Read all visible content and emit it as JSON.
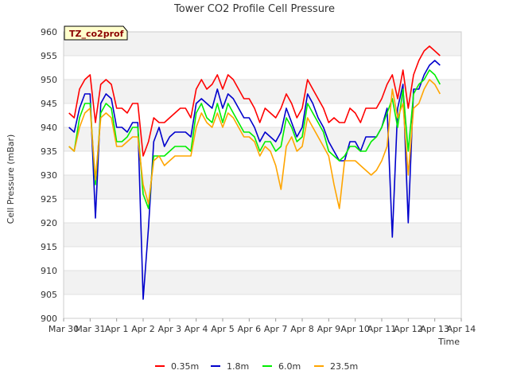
{
  "chart_data": {
    "type": "line",
    "title": "Tower CO2 Profile Cell Pressure",
    "xlabel": "Time",
    "ylabel": "Cell Pressure (mBar)",
    "annotation": "TZ_co2prof",
    "ylim": [
      900,
      960
    ],
    "yticks": [
      900,
      905,
      910,
      915,
      920,
      925,
      930,
      935,
      940,
      945,
      950,
      955,
      960
    ],
    "xlim": [
      0,
      15
    ],
    "xticks": [
      {
        "x": 0,
        "label": "Mar 30"
      },
      {
        "x": 1,
        "label": "Mar 31"
      },
      {
        "x": 2,
        "label": "Apr 1"
      },
      {
        "x": 3,
        "label": "Apr 2"
      },
      {
        "x": 4,
        "label": "Apr 3"
      },
      {
        "x": 5,
        "label": "Apr 4"
      },
      {
        "x": 6,
        "label": "Apr 5"
      },
      {
        "x": 7,
        "label": "Apr 6"
      },
      {
        "x": 8,
        "label": "Apr 7"
      },
      {
        "x": 9,
        "label": "Apr 8"
      },
      {
        "x": 10,
        "label": "Apr 9"
      },
      {
        "x": 11,
        "label": "Apr 10"
      },
      {
        "x": 12,
        "label": "Apr 11"
      },
      {
        "x": 13,
        "label": "Apr 12"
      },
      {
        "x": 14,
        "label": "Apr 13"
      },
      {
        "x": 15,
        "label": "Apr 14"
      }
    ],
    "grid": "horizontal bands",
    "legend": "bottom",
    "series": [
      {
        "name": "0.35m",
        "color": "#ff0000",
        "x": [
          0.2,
          0.4,
          0.6,
          0.8,
          1.0,
          1.2,
          1.4,
          1.6,
          1.8,
          2.0,
          2.2,
          2.4,
          2.6,
          2.8,
          3.0,
          3.2,
          3.4,
          3.6,
          3.8,
          4.0,
          4.2,
          4.4,
          4.6,
          4.8,
          5.0,
          5.2,
          5.4,
          5.6,
          5.8,
          6.0,
          6.2,
          6.4,
          6.6,
          6.8,
          7.0,
          7.2,
          7.4,
          7.6,
          7.8,
          8.0,
          8.2,
          8.4,
          8.6,
          8.8,
          9.0,
          9.2,
          9.4,
          9.6,
          9.8,
          10.0,
          10.2,
          10.4,
          10.6,
          10.8,
          11.0,
          11.2,
          11.4,
          11.6,
          11.8,
          12.0,
          12.2,
          12.4,
          12.6,
          12.8,
          13.0,
          13.2,
          13.4,
          13.6,
          13.8,
          14.0,
          14.2
        ],
        "y": [
          943,
          942,
          948,
          950,
          951,
          941,
          949,
          950,
          949,
          944,
          944,
          943,
          945,
          945,
          934,
          937,
          942,
          941,
          941,
          942,
          943,
          944,
          944,
          942,
          948,
          950,
          948,
          949,
          951,
          948,
          951,
          950,
          948,
          946,
          946,
          944,
          941,
          944,
          943,
          942,
          944,
          947,
          945,
          942,
          944,
          950,
          948,
          946,
          944,
          941,
          942,
          941,
          941,
          944,
          943,
          941,
          944,
          944,
          944,
          946,
          949,
          951,
          946,
          952,
          944,
          951,
          954,
          956,
          957,
          956,
          955
        ]
      },
      {
        "name": "1.8m",
        "color": "#0000cc",
        "x": [
          0.2,
          0.4,
          0.6,
          0.8,
          1.0,
          1.2,
          1.4,
          1.6,
          1.8,
          2.0,
          2.2,
          2.4,
          2.6,
          2.8,
          3.0,
          3.2,
          3.4,
          3.6,
          3.8,
          4.0,
          4.2,
          4.4,
          4.6,
          4.8,
          5.0,
          5.2,
          5.4,
          5.6,
          5.8,
          6.0,
          6.2,
          6.4,
          6.6,
          6.8,
          7.0,
          7.2,
          7.4,
          7.6,
          7.8,
          8.0,
          8.2,
          8.4,
          8.6,
          8.8,
          9.0,
          9.2,
          9.4,
          9.6,
          9.8,
          10.0,
          10.2,
          10.4,
          10.6,
          10.8,
          11.0,
          11.2,
          11.4,
          11.6,
          11.8,
          12.0,
          12.2,
          12.4,
          12.6,
          12.8,
          13.0,
          13.2,
          13.4,
          13.6,
          13.8,
          14.0,
          14.2
        ],
        "y": [
          940,
          939,
          944,
          947,
          947,
          921,
          945,
          947,
          946,
          940,
          940,
          939,
          941,
          941,
          904,
          919,
          937,
          940,
          936,
          938,
          939,
          939,
          939,
          938,
          945,
          946,
          945,
          944,
          948,
          944,
          947,
          946,
          944,
          942,
          942,
          940,
          937,
          939,
          938,
          937,
          939,
          944,
          941,
          938,
          940,
          947,
          945,
          942,
          940,
          937,
          935,
          933,
          933,
          937,
          937,
          935,
          938,
          938,
          938,
          940,
          944,
          917,
          944,
          949,
          920,
          948,
          948,
          951,
          953,
          954,
          953
        ]
      },
      {
        "name": "6.0m",
        "color": "#00ee00",
        "x": [
          0.2,
          0.4,
          0.6,
          0.8,
          1.0,
          1.2,
          1.4,
          1.6,
          1.8,
          2.0,
          2.2,
          2.4,
          2.6,
          2.8,
          3.0,
          3.2,
          3.4,
          3.6,
          3.8,
          4.0,
          4.2,
          4.4,
          4.6,
          4.8,
          5.0,
          5.2,
          5.4,
          5.6,
          5.8,
          6.0,
          6.2,
          6.4,
          6.6,
          6.8,
          7.0,
          7.2,
          7.4,
          7.6,
          7.8,
          8.0,
          8.2,
          8.4,
          8.6,
          8.8,
          9.0,
          9.2,
          9.4,
          9.6,
          9.8,
          10.0,
          10.2,
          10.4,
          10.6,
          10.8,
          11.0,
          11.2,
          11.4,
          11.6,
          11.8,
          12.0,
          12.2,
          12.4,
          12.6,
          12.8,
          13.0,
          13.2,
          13.4,
          13.6,
          13.8,
          14.0,
          14.2
        ],
        "y": [
          936,
          935,
          942,
          945,
          945,
          928,
          943,
          945,
          944,
          937,
          937,
          938,
          940,
          940,
          926,
          923,
          934,
          934,
          934,
          935,
          936,
          936,
          936,
          935,
          943,
          945,
          942,
          941,
          945,
          941,
          945,
          943,
          941,
          939,
          939,
          938,
          935,
          937,
          937,
          935,
          936,
          942,
          940,
          937,
          938,
          945,
          943,
          941,
          939,
          935,
          934,
          933,
          934,
          936,
          936,
          935,
          935,
          937,
          938,
          940,
          943,
          946,
          940,
          948,
          935,
          947,
          949,
          950,
          952,
          951,
          949
        ]
      },
      {
        "name": "23.5m",
        "color": "#ffa500",
        "x": [
          0.2,
          0.4,
          0.6,
          0.8,
          1.0,
          1.2,
          1.4,
          1.6,
          1.8,
          2.0,
          2.2,
          2.4,
          2.6,
          2.8,
          3.0,
          3.2,
          3.4,
          3.6,
          3.8,
          4.0,
          4.2,
          4.4,
          4.6,
          4.8,
          5.0,
          5.2,
          5.4,
          5.6,
          5.8,
          6.0,
          6.2,
          6.4,
          6.6,
          6.8,
          7.0,
          7.2,
          7.4,
          7.6,
          7.8,
          8.0,
          8.2,
          8.4,
          8.6,
          8.8,
          9.0,
          9.2,
          9.4,
          9.6,
          9.8,
          10.0,
          10.2,
          10.4,
          10.6,
          10.8,
          11.0,
          11.2,
          11.4,
          11.6,
          11.8,
          12.0,
          12.2,
          12.4,
          12.6,
          12.8,
          13.0,
          13.2,
          13.4,
          13.6,
          13.8,
          14.0,
          14.2
        ],
        "y": [
          936,
          935,
          940,
          943,
          944,
          929,
          942,
          943,
          942,
          936,
          936,
          937,
          938,
          938,
          928,
          924,
          933,
          934,
          932,
          933,
          934,
          934,
          934,
          934,
          940,
          943,
          941,
          940,
          943,
          940,
          943,
          942,
          940,
          938,
          938,
          937,
          934,
          936,
          935,
          932,
          927,
          936,
          938,
          935,
          936,
          942,
          940,
          938,
          936,
          934,
          928,
          923,
          933,
          933,
          933,
          932,
          931,
          930,
          931,
          933,
          936,
          948,
          942,
          945,
          930,
          944,
          945,
          948,
          950,
          949,
          947
        ]
      }
    ]
  }
}
